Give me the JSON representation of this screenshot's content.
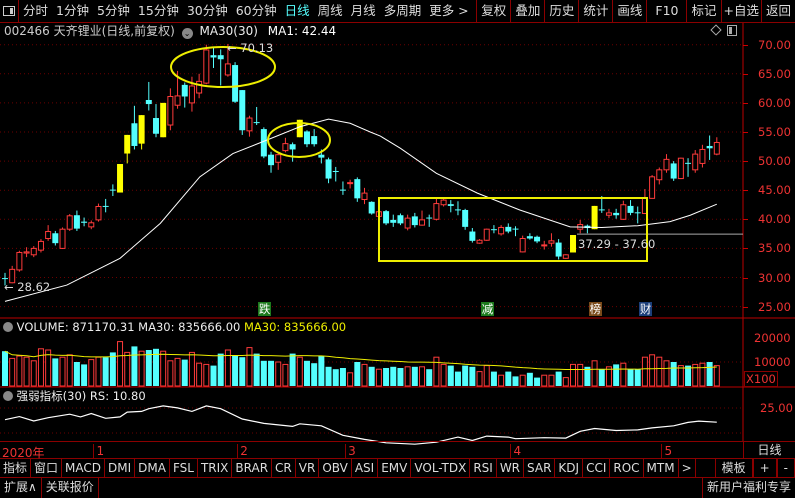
{
  "toolbar": {
    "periods": [
      "分时",
      "1分钟",
      "5分钟",
      "15分钟",
      "30分钟",
      "60分钟",
      "日线",
      "周线",
      "月线",
      "多周期",
      "更多 >"
    ],
    "active_period": "日线",
    "actions": [
      "复权",
      "叠加",
      "历史",
      "统计",
      "画线",
      "F10",
      "标记",
      "+自选",
      "返回"
    ]
  },
  "title": {
    "stock": "002466 天齐锂业(日线,前复权)",
    "ma_name": "MA30(30)",
    "ma1": "MA1: 42.44"
  },
  "colors": {
    "up": "#ff3b3b",
    "down": "#54ffff",
    "limit_up": "#ffff00",
    "ma": "#ffffff",
    "vol_ma": "#ffff00",
    "grid": "#8b0000",
    "axis_text": "#ee3333",
    "annotation": "#ffff00"
  },
  "price_axis": {
    "labels": [
      "70.00",
      "65.00",
      "60.00",
      "55.00",
      "50.00",
      "45.00",
      "40.00",
      "35.00",
      "30.00",
      "25.00"
    ]
  },
  "annotations": {
    "high_label": "70.13",
    "low_label": "28.62",
    "range_label": "37.29 - 37.60",
    "range_line_price": 37.45,
    "markers": [
      {
        "text": "跌",
        "color": "#1d7a1d",
        "bar": 36
      },
      {
        "text": "减",
        "color": "#1d7a1d",
        "bar": 67
      },
      {
        "text": "榜",
        "color": "#7a4a1a",
        "bar": 82
      },
      {
        "text": "财",
        "color": "#1c3f7a",
        "bar": 89
      }
    ]
  },
  "volume_panel": {
    "header": "VOLUME: 871170.31  MA30: 835666.00",
    "ma_label": "MA30: 835666.00",
    "axis": [
      "20000",
      "10000"
    ],
    "unit": "X100"
  },
  "rs_panel": {
    "header": "强弱指标(30)  RS: 10.80",
    "axis": [
      "25.00"
    ]
  },
  "x_axis": {
    "labels": [
      {
        "text": "2020年",
        "bar": 0
      },
      {
        "text": "1",
        "bar": 13
      },
      {
        "text": "2",
        "bar": 33
      },
      {
        "text": "3",
        "bar": 48
      },
      {
        "text": "4",
        "bar": 71
      },
      {
        "text": "5",
        "bar": 92
      }
    ],
    "period_label": "日线"
  },
  "indicator_tabs": [
    "指标",
    "窗口",
    "MACD",
    "DMI",
    "DMA",
    "FSL",
    "TRIX",
    "BRAR",
    "CR",
    "VR",
    "OBV",
    "ASI",
    "EMV",
    "VOL-TDX",
    "RSI",
    "WR",
    "SAR",
    "KDJ",
    "CCI",
    "ROC",
    "MTM",
    ">"
  ],
  "right_tabs": [
    "模板",
    "+",
    "-"
  ],
  "bottom_bar": {
    "left": [
      "扩展∧",
      "关联报价"
    ],
    "right": "新用户福利专享"
  },
  "chart_data": {
    "type": "candlestick",
    "ylim": [
      25,
      70
    ],
    "ohlc_fields": [
      "open",
      "close",
      "high",
      "low",
      "kind"
    ],
    "candles": [
      [
        29.9,
        29.9,
        30.8,
        28.62,
        "d"
      ],
      [
        29.1,
        31.4,
        32,
        29,
        "u"
      ],
      [
        31.3,
        34.3,
        34.6,
        31,
        "u"
      ],
      [
        34.2,
        34.4,
        35.2,
        33.5,
        "u"
      ],
      [
        33.9,
        35.0,
        35.4,
        33.5,
        "u"
      ],
      [
        34.7,
        36.2,
        36.6,
        34.3,
        "u"
      ],
      [
        36.7,
        37.9,
        39,
        36.3,
        "u"
      ],
      [
        37.6,
        35.9,
        38,
        35.5,
        "d"
      ],
      [
        35.0,
        38.3,
        38.6,
        34.9,
        "u"
      ],
      [
        38.3,
        40.6,
        40.9,
        38,
        "u"
      ],
      [
        40.7,
        38.4,
        41.5,
        38,
        "d"
      ],
      [
        39.6,
        39.4,
        40.3,
        38.8,
        "d"
      ],
      [
        38.7,
        39.4,
        39.8,
        38.3,
        "u"
      ],
      [
        39.9,
        42.2,
        42.7,
        39.6,
        "u"
      ],
      [
        42.3,
        42.2,
        43.5,
        41.2,
        "d"
      ],
      [
        45.1,
        45.0,
        46,
        44,
        "d"
      ],
      [
        44.6,
        49.5,
        49.5,
        44.6,
        "l"
      ],
      [
        51.3,
        54.5,
        54.5,
        49.6,
        "l"
      ],
      [
        56.5,
        52.6,
        59.5,
        52,
        "d"
      ],
      [
        53.0,
        57.9,
        57.9,
        52,
        "l"
      ],
      [
        60.5,
        59.8,
        63.6,
        58.7,
        "d"
      ],
      [
        57.4,
        54.7,
        59.8,
        54.1,
        "d"
      ],
      [
        54.1,
        60.0,
        60.0,
        54.1,
        "l"
      ],
      [
        56.2,
        61.1,
        62.5,
        55.3,
        "u"
      ],
      [
        59.6,
        61.2,
        65.5,
        59.0,
        "u"
      ],
      [
        63.1,
        61.1,
        63.5,
        59.2,
        "d"
      ],
      [
        60.0,
        62.9,
        64.5,
        58.5,
        "u"
      ],
      [
        61.7,
        63.7,
        65.0,
        60.8,
        "u"
      ],
      [
        63.4,
        69.1,
        70.0,
        63.2,
        "u"
      ],
      [
        68.2,
        67.8,
        69.6,
        66.0,
        "d"
      ],
      [
        68.2,
        67.5,
        69.2,
        63.0,
        "d"
      ],
      [
        64.8,
        66.7,
        70.13,
        64.5,
        "u"
      ],
      [
        66.5,
        60.2,
        67.0,
        60.0,
        "d"
      ],
      [
        62.2,
        55.3,
        62.2,
        54.5,
        "d"
      ],
      [
        55.2,
        57.4,
        57.8,
        54.2,
        "u"
      ],
      [
        56.7,
        56.6,
        59.3,
        56.2,
        "d"
      ],
      [
        55.5,
        50.8,
        55.8,
        50.5,
        "d"
      ],
      [
        51.1,
        49.3,
        51.6,
        48.0,
        "d"
      ],
      [
        49.8,
        51.1,
        51.6,
        48.5,
        "u"
      ],
      [
        51.8,
        53.0,
        54.0,
        51.5,
        "u"
      ],
      [
        52.9,
        52.0,
        53.2,
        49.9,
        "d"
      ],
      [
        54.1,
        57.1,
        57.1,
        54.1,
        "l"
      ],
      [
        55.1,
        52.9,
        55.3,
        52.4,
        "d"
      ],
      [
        54.3,
        52.9,
        55.5,
        52.5,
        "d"
      ],
      [
        51.1,
        50.6,
        52.0,
        49.6,
        "d"
      ],
      [
        50.3,
        47.0,
        50.6,
        46.2,
        "d"
      ],
      [
        48.3,
        48.2,
        49.0,
        46.5,
        "d"
      ],
      [
        45.1,
        45.0,
        46.5,
        44.2,
        "d"
      ],
      [
        46.2,
        46.3,
        46.8,
        45.3,
        "u"
      ],
      [
        46.9,
        43.6,
        47.2,
        43.0,
        "d"
      ],
      [
        43.4,
        44.5,
        45.4,
        42.6,
        "u"
      ],
      [
        43.0,
        41.0,
        43.1,
        40.8,
        "d"
      ],
      [
        40.5,
        41.3,
        41.7,
        40.2,
        "u"
      ],
      [
        41.4,
        39.3,
        41.6,
        39.0,
        "d"
      ],
      [
        39.9,
        39.4,
        40.8,
        38.7,
        "d"
      ],
      [
        40.7,
        39.3,
        41.0,
        39.0,
        "d"
      ],
      [
        38.5,
        40.2,
        40.8,
        38.1,
        "u"
      ],
      [
        40.5,
        39.0,
        41.1,
        38.6,
        "d"
      ],
      [
        39.0,
        39.9,
        41.5,
        38.9,
        "u"
      ],
      [
        40.3,
        40.2,
        40.8,
        38.7,
        "d"
      ],
      [
        40.0,
        42.7,
        43.5,
        39.8,
        "u"
      ],
      [
        42.5,
        43.3,
        43.6,
        42.2,
        "u"
      ],
      [
        42.6,
        42.3,
        43.3,
        41.2,
        "d"
      ],
      [
        41.7,
        41.6,
        43.1,
        40.7,
        "d"
      ],
      [
        41.6,
        38.7,
        41.8,
        38.2,
        "d"
      ],
      [
        37.9,
        36.3,
        38.5,
        36.0,
        "d"
      ],
      [
        35.9,
        36.4,
        36.6,
        35.8,
        "u"
      ],
      [
        36.4,
        38.3,
        38.4,
        36.3,
        "u"
      ],
      [
        38.3,
        38.2,
        39.0,
        37.6,
        "d"
      ],
      [
        37.5,
        38.6,
        39.0,
        37.2,
        "u"
      ],
      [
        38.7,
        37.9,
        39.3,
        37.6,
        "d"
      ],
      [
        38.4,
        38.3,
        38.8,
        37.1,
        "d"
      ],
      [
        34.4,
        36.7,
        37.2,
        34.3,
        "u"
      ],
      [
        37.1,
        36.7,
        37.6,
        36.5,
        "d"
      ],
      [
        37.0,
        36.2,
        37.2,
        35.9,
        "d"
      ],
      [
        35.5,
        35.6,
        36.3,
        34.8,
        "u"
      ],
      [
        35.9,
        36.3,
        37.6,
        35.3,
        "u"
      ],
      [
        36.0,
        33.6,
        36.6,
        33.1,
        "d"
      ],
      [
        33.3,
        33.9,
        34.0,
        33.2,
        "u"
      ],
      [
        34.3,
        37.3,
        37.3,
        34.3,
        "l"
      ],
      [
        38.3,
        39.1,
        39.9,
        37.6,
        "u"
      ],
      [
        38.9,
        38.5,
        39.1,
        37.6,
        "d"
      ],
      [
        38.3,
        42.3,
        42.3,
        38.3,
        "l"
      ],
      [
        41.7,
        41.6,
        44.0,
        41.1,
        "d"
      ],
      [
        40.7,
        41.1,
        41.8,
        40.2,
        "u"
      ],
      [
        41.1,
        40.7,
        41.8,
        40.1,
        "d"
      ],
      [
        40.0,
        42.5,
        43.2,
        39.9,
        "u"
      ],
      [
        42.3,
        41.1,
        43.3,
        40.7,
        "d"
      ],
      [
        41.2,
        41.1,
        42.2,
        39.3,
        "d"
      ],
      [
        41.0,
        43.6,
        45.2,
        40.9,
        "u"
      ],
      [
        43.6,
        47.3,
        47.6,
        43.6,
        "u"
      ],
      [
        46.8,
        48.5,
        48.9,
        46.0,
        "u"
      ],
      [
        48.5,
        50.3,
        51.2,
        48.0,
        "u"
      ],
      [
        49.6,
        47.0,
        50.0,
        46.6,
        "d"
      ],
      [
        47.0,
        50.5,
        50.6,
        46.9,
        "u"
      ],
      [
        49.7,
        49.6,
        50.5,
        47.3,
        "d"
      ],
      [
        48.5,
        51.2,
        51.9,
        48.0,
        "u"
      ],
      [
        49.6,
        52.0,
        52.8,
        48.9,
        "u"
      ],
      [
        52.6,
        52.2,
        54.4,
        50.2,
        "d"
      ],
      [
        51.2,
        53.2,
        54.1,
        51.0,
        "u"
      ]
    ],
    "ma30": [
      [
        0,
        25.9
      ],
      [
        8.6,
        28.7
      ],
      [
        16,
        33.3
      ],
      [
        21.6,
        39.3
      ],
      [
        27.1,
        47.3
      ],
      [
        31.7,
        51.3
      ],
      [
        36.4,
        53.6
      ],
      [
        41,
        55.9
      ],
      [
        45,
        57.2
      ],
      [
        48,
        56.5
      ],
      [
        50.8,
        55.0
      ],
      [
        52.2,
        54.3
      ],
      [
        55,
        52.2
      ],
      [
        60,
        47.9
      ],
      [
        65.7,
        44.5
      ],
      [
        71.6,
        41.6
      ],
      [
        78.6,
        38.7
      ],
      [
        83,
        38.6
      ],
      [
        88,
        38.9
      ],
      [
        92.5,
        39.6
      ],
      [
        95.3,
        40.7
      ],
      [
        99,
        42.6
      ]
    ],
    "volume": [
      14500,
      11500,
      12500,
      12000,
      10500,
      15500,
      15000,
      11500,
      12000,
      13000,
      10000,
      9000,
      11000,
      12000,
      12000,
      14000,
      18500,
      14000,
      16500,
      14500,
      15000,
      15500,
      14500,
      10500,
      11500,
      11000,
      14000,
      9500,
      9000,
      8500,
      13500,
      15000,
      12500,
      12000,
      16000,
      13500,
      10500,
      10500,
      10000,
      9000,
      13500,
      12000,
      10500,
      9500,
      12500,
      8000,
      7000,
      7500,
      5500,
      10000,
      9000,
      8000,
      7000,
      7500,
      8000,
      7500,
      8000,
      8000,
      8000,
      7000,
      12000,
      9000,
      8500,
      6000,
      8500,
      8000,
      6000,
      8500,
      6000,
      4500,
      6000,
      4000,
      4500,
      5500,
      3500,
      4500,
      4500,
      6000,
      3500,
      9000,
      9000,
      8000,
      10500,
      7000,
      8000,
      9000,
      9500,
      7000,
      7000,
      12000,
      13000,
      12000,
      10500,
      10000,
      8500,
      8500,
      9000,
      9500,
      10000,
      8500
    ],
    "volume_ylim": [
      0,
      27000
    ],
    "rs": [
      [
        0,
        13.3
      ],
      [
        2,
        16.4
      ],
      [
        4,
        12.0
      ],
      [
        6,
        15.3
      ],
      [
        9,
        18.8
      ],
      [
        10.5,
        16.1
      ],
      [
        12,
        19.5
      ],
      [
        14,
        14.7
      ],
      [
        16,
        16.1
      ],
      [
        17,
        20.9
      ],
      [
        19,
        21.6
      ],
      [
        20,
        24.3
      ],
      [
        22,
        27.1
      ],
      [
        24,
        25.1
      ],
      [
        26,
        21.6
      ],
      [
        28,
        27.1
      ],
      [
        30,
        24.3
      ],
      [
        33,
        14.0
      ],
      [
        36,
        9.6
      ],
      [
        40,
        6.6
      ],
      [
        41,
        9.2
      ],
      [
        44,
        7.2
      ],
      [
        47,
        -2.3
      ],
      [
        50,
        -6.4
      ],
      [
        53,
        -9.8
      ],
      [
        57,
        -11.2
      ],
      [
        60,
        -9.2
      ],
      [
        63,
        -4.1
      ],
      [
        65,
        -7.5
      ],
      [
        67,
        -3.1
      ],
      [
        70,
        -4.1
      ],
      [
        71,
        -5.7
      ],
      [
        75,
        -4.7
      ],
      [
        78,
        -5.1
      ],
      [
        80,
        1.7
      ],
      [
        82,
        4.5
      ],
      [
        85,
        2.5
      ],
      [
        88,
        3.1
      ],
      [
        90,
        5.1
      ],
      [
        93,
        7.2
      ],
      [
        95,
        10.6
      ],
      [
        96.5,
        11.9
      ],
      [
        99,
        10.8
      ]
    ]
  }
}
